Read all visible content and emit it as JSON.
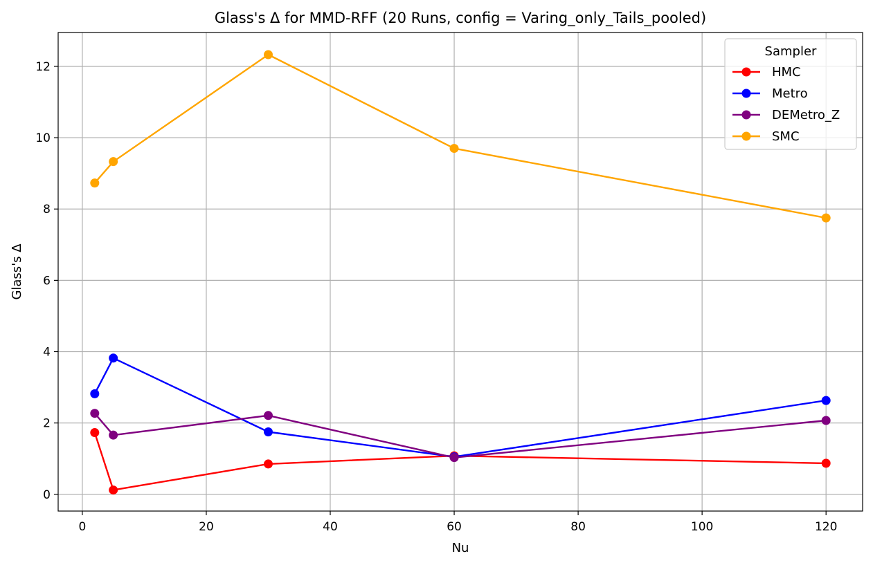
{
  "chart_data": {
    "type": "line",
    "title": "Glass's Δ for MMD-RFF (20 Runs, config = Varing_only_Tails_pooled)",
    "xlabel": "Nu",
    "ylabel": "Glass's Δ",
    "xlim": [
      -3.9,
      125.9
    ],
    "ylim": [
      -0.47,
      12.95
    ],
    "xticks": [
      0,
      20,
      40,
      60,
      80,
      100,
      120
    ],
    "yticks": [
      0,
      2,
      4,
      6,
      8,
      10,
      12
    ],
    "grid": true,
    "legend": {
      "title": "Sampler",
      "position": "top-right"
    },
    "x": [
      2,
      5,
      30,
      60,
      120
    ],
    "series": [
      {
        "name": "HMC",
        "color": "#ff0000",
        "values": [
          1.73,
          0.12,
          0.85,
          1.08,
          0.87
        ]
      },
      {
        "name": "Metro",
        "color": "#0000ff",
        "values": [
          2.82,
          3.82,
          1.75,
          1.05,
          2.63
        ]
      },
      {
        "name": "DEMetro_Z",
        "color": "#800080",
        "values": [
          2.27,
          1.66,
          2.21,
          1.03,
          2.07
        ]
      },
      {
        "name": "SMC",
        "color": "#ffa500",
        "values": [
          8.73,
          9.33,
          12.33,
          9.7,
          7.75
        ]
      }
    ]
  }
}
